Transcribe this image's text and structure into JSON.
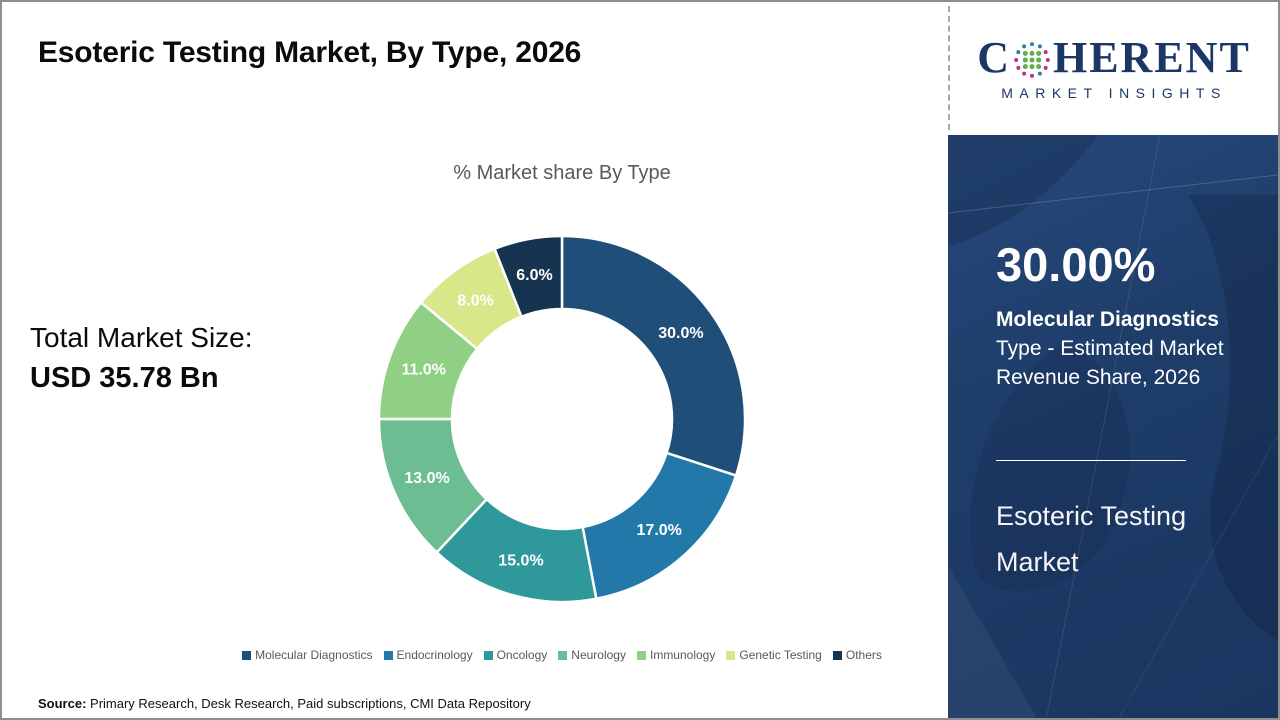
{
  "header": {
    "title": "Esoteric Testing Market, By Type, 2026"
  },
  "logo": {
    "name_prefix": "C",
    "name_suffix": "HERENT",
    "subtitle": "MARKET INSIGHTS",
    "brand_color": "#1B3768",
    "globe_icon": "dotted-globe"
  },
  "market_size": {
    "label": "Total Market Size:",
    "value": "USD 35.78 Bn"
  },
  "chart_data": {
    "type": "pie",
    "subtype": "donut",
    "title": "% Market share By Type",
    "categories": [
      "Molecular Diagnostics",
      "Endocrinology",
      "Oncology",
      "Neurology",
      "Immunology",
      "Genetic Testing",
      "Others"
    ],
    "values": [
      30.0,
      17.0,
      15.0,
      13.0,
      11.0,
      8.0,
      6.0
    ],
    "labels": [
      "30.0%",
      "17.0%",
      "15.0%",
      "13.0%",
      "11.0%",
      "8.0%",
      "6.0%"
    ],
    "colors": [
      "#1F4E78",
      "#2279A9",
      "#2F989A",
      "#6CBE92",
      "#8FD084",
      "#D8E78A",
      "#16334F"
    ],
    "start_angle_deg": 0,
    "direction": "clockwise",
    "legend_position": "bottom",
    "label_color": "#ffffff"
  },
  "side_panel": {
    "stat_value": "30.00%",
    "stat_label_bold": "Molecular Diagnostics",
    "stat_label_rest": "Type - Estimated Market Revenue Share, 2026",
    "panel_title": "Esoteric Testing Market",
    "background_color": "#1E3C68"
  },
  "footer": {
    "source_label": "Source:",
    "source_text": " Primary Research, Desk Research, Paid subscriptions, CMI Data Repository"
  }
}
